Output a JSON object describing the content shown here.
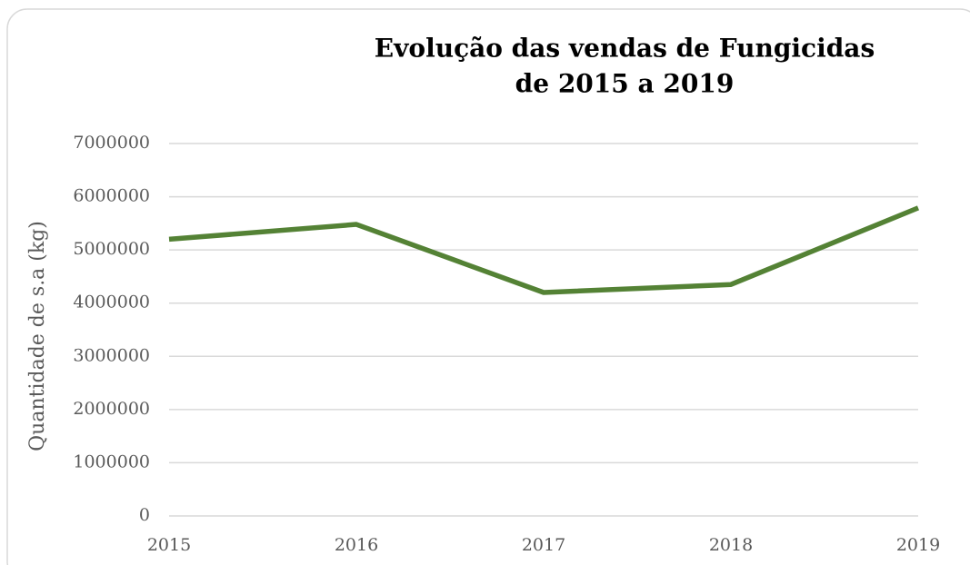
{
  "chart_data": {
    "type": "line",
    "title": [
      "Evolução das vendas de Fungicidas",
      "de 2015 a 2019"
    ],
    "y_label": "Quantidade de s.a (kg)",
    "x": [
      2015,
      2016,
      2017,
      2018,
      2019
    ],
    "series": [
      {
        "name": "Fungicidas",
        "color": "#548235",
        "values": [
          5200000,
          5480000,
          4200000,
          4350000,
          5790000
        ]
      }
    ],
    "xlim": [
      2015,
      2019
    ],
    "xticks": [
      2015,
      2016,
      2017,
      2018,
      2019
    ],
    "ylim": [
      0,
      7000000
    ],
    "yticks": [
      0,
      1000000,
      2000000,
      3000000,
      4000000,
      5000000,
      6000000,
      7000000
    ],
    "grid": true
  }
}
